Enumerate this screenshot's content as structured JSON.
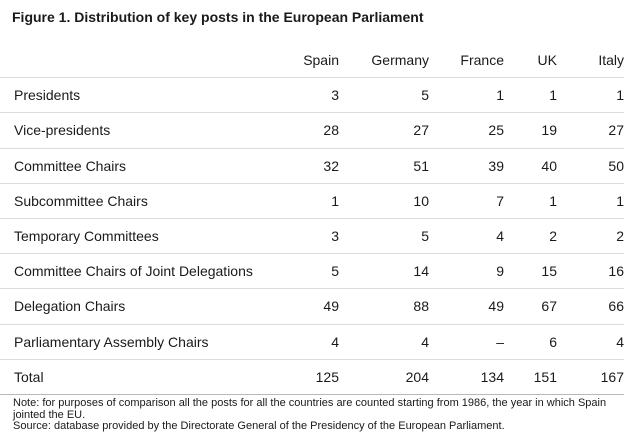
{
  "figure": {
    "title": "Figure 1. Distribution of key posts in the European Parliament"
  },
  "table": {
    "columns": [
      "Spain",
      "Germany",
      "France",
      "UK",
      "Italy"
    ],
    "rows": [
      {
        "label": "Presidents",
        "values": [
          "3",
          "5",
          "1",
          "1",
          "1"
        ]
      },
      {
        "label": "Vice-presidents",
        "values": [
          "28",
          "27",
          "25",
          "19",
          "27"
        ]
      },
      {
        "label": "Committee Chairs",
        "values": [
          "32",
          "51",
          "39",
          "40",
          "50"
        ]
      },
      {
        "label": "Subcommittee Chairs",
        "values": [
          "1",
          "10",
          "7",
          "1",
          "1"
        ]
      },
      {
        "label": "Temporary Committees",
        "values": [
          "3",
          "5",
          "4",
          "2",
          "2"
        ]
      },
      {
        "label": "Committee Chairs of Joint Delegations",
        "values": [
          "5",
          "14",
          "9",
          "15",
          "16"
        ]
      },
      {
        "label": "Delegation Chairs",
        "values": [
          "49",
          "88",
          "49",
          "67",
          "66"
        ]
      },
      {
        "label": "Parliamentary Assembly Chairs",
        "values": [
          "4",
          "4",
          "–",
          "6",
          "4"
        ]
      },
      {
        "label": "Total",
        "values": [
          "125",
          "204",
          "134",
          "151",
          "167"
        ]
      }
    ]
  },
  "notes": {
    "note": "Note: for purposes of comparison all the posts for all the countries are counted starting from 1986, the year in which Spain jointed the EU.",
    "source": "Source: database provided by the Directorate General of the Presidency of the European Parliament."
  }
}
